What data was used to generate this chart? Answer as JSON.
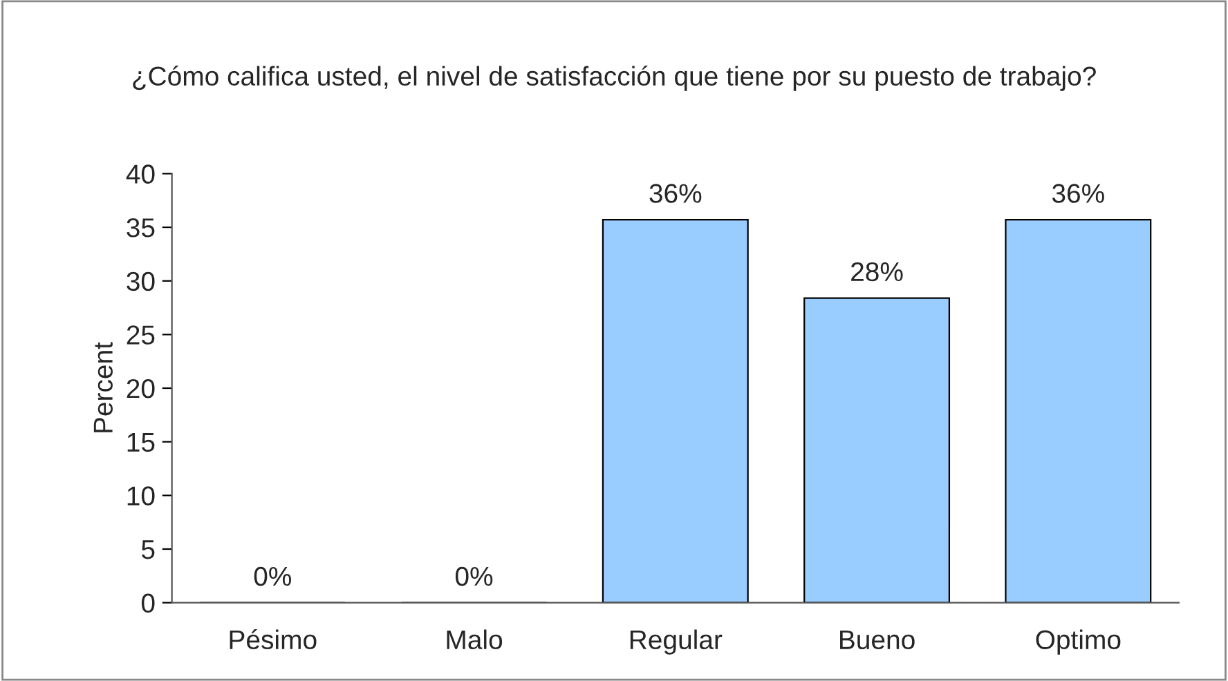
{
  "chart_data": {
    "type": "bar",
    "title": "¿Cómo califica usted, el nivel de satisfacción que tiene por su puesto de trabajo?",
    "ylabel": "Percent",
    "categories": [
      "Pésimo",
      "Malo",
      "Regular",
      "Bueno",
      "Optimo"
    ],
    "values": [
      0,
      0,
      35.7,
      28.4,
      35.7
    ],
    "value_labels": [
      "0%",
      "0%",
      "36%",
      "28%",
      "36%"
    ],
    "color": "#99ccff",
    "ylim": [
      0,
      40
    ],
    "yticks": [
      0,
      5,
      10,
      15,
      20,
      25,
      30,
      35,
      40
    ],
    "grid": false
  }
}
